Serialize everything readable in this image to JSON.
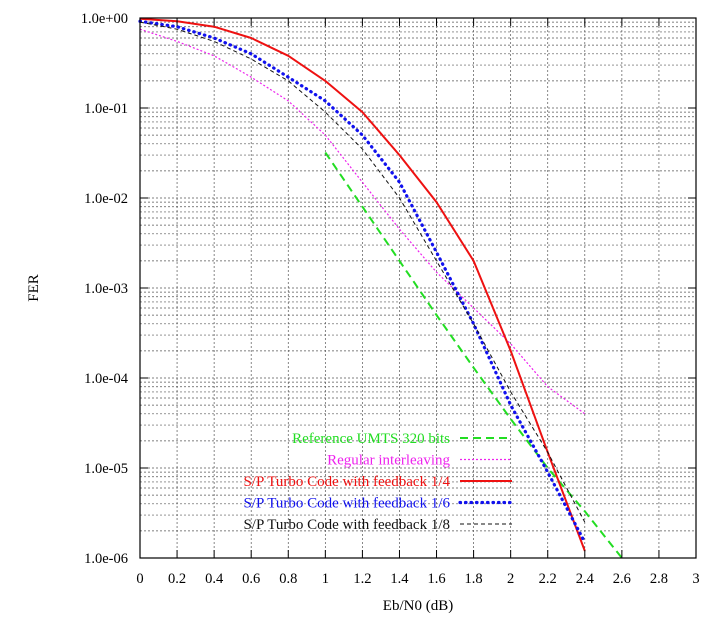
{
  "chart_data": {
    "type": "line",
    "xlabel": "Eb/N0 (dB)",
    "ylabel": "FER",
    "xlim": [
      0,
      3
    ],
    "ylim": [
      1e-06,
      1
    ],
    "yscale": "log",
    "grid": true,
    "legend_position": "bottom-right",
    "x_ticks": [
      "0",
      "0.2",
      "0.4",
      "0.6",
      "0.8",
      "1",
      "1.2",
      "1.4",
      "1.6",
      "1.8",
      "2",
      "2.2",
      "2.4",
      "2.6",
      "2.8",
      "3"
    ],
    "y_ticks": [
      "1.0e+00",
      "1.0e-01",
      "1.0e-02",
      "1.0e-03",
      "1.0e-04",
      "1.0e-05",
      "1.0e-06"
    ],
    "series": [
      {
        "name": "Reference UMTS 320 bits",
        "color": "#22dd22",
        "dash": "dashed",
        "x": [
          1.0,
          1.2,
          1.4,
          1.6,
          1.8,
          2.0,
          2.2,
          2.4,
          2.6
        ],
        "y": [
          0.032,
          0.008,
          0.002,
          0.0005,
          0.00013,
          3.5e-05,
          1e-05,
          3.3e-06,
          1e-06
        ]
      },
      {
        "name": "Regular interleaving",
        "color": "#ee22ee",
        "dash": "dotted",
        "x": [
          0,
          0.2,
          0.4,
          0.6,
          0.8,
          1.0,
          1.2,
          1.4,
          1.6,
          1.8,
          2.0,
          2.2,
          2.4
        ],
        "y": [
          0.75,
          0.55,
          0.38,
          0.22,
          0.12,
          0.05,
          0.015,
          0.0045,
          0.0015,
          0.0006,
          0.00024,
          8e-05,
          4e-05
        ]
      },
      {
        "name": "S/P Turbo Code with feedback 1/4",
        "color": "#ee1111",
        "dash": "solid",
        "x": [
          0,
          0.2,
          0.4,
          0.6,
          0.8,
          1.0,
          1.2,
          1.4,
          1.6,
          1.8,
          2.0,
          2.2,
          2.4
        ],
        "y": [
          0.98,
          0.92,
          0.8,
          0.6,
          0.38,
          0.2,
          0.09,
          0.03,
          0.009,
          0.002,
          0.0002,
          1.5e-05,
          1.2e-06
        ]
      },
      {
        "name": "S/P Turbo Code with feedback 1/6",
        "color": "#1111ee",
        "dash": "dotted-thick",
        "x": [
          0,
          0.2,
          0.4,
          0.6,
          0.8,
          1.0,
          1.2,
          1.4,
          1.6,
          1.8,
          2.0,
          2.2,
          2.4
        ],
        "y": [
          0.92,
          0.8,
          0.6,
          0.4,
          0.22,
          0.12,
          0.05,
          0.015,
          0.0025,
          0.0004,
          5e-05,
          9e-06,
          1.5e-06
        ]
      },
      {
        "name": "S/P Turbo Code with feedback 1/8",
        "color": "#111111",
        "dash": "dashed-thin",
        "x": [
          0,
          0.2,
          0.4,
          0.6,
          0.8,
          1.0,
          1.2,
          1.4,
          1.6,
          1.8,
          2.0,
          2.2,
          2.4
        ],
        "y": [
          0.9,
          0.75,
          0.55,
          0.35,
          0.2,
          0.09,
          0.035,
          0.01,
          0.002,
          0.0004,
          7e-05,
          1.5e-05,
          2.5e-06
        ]
      }
    ]
  }
}
